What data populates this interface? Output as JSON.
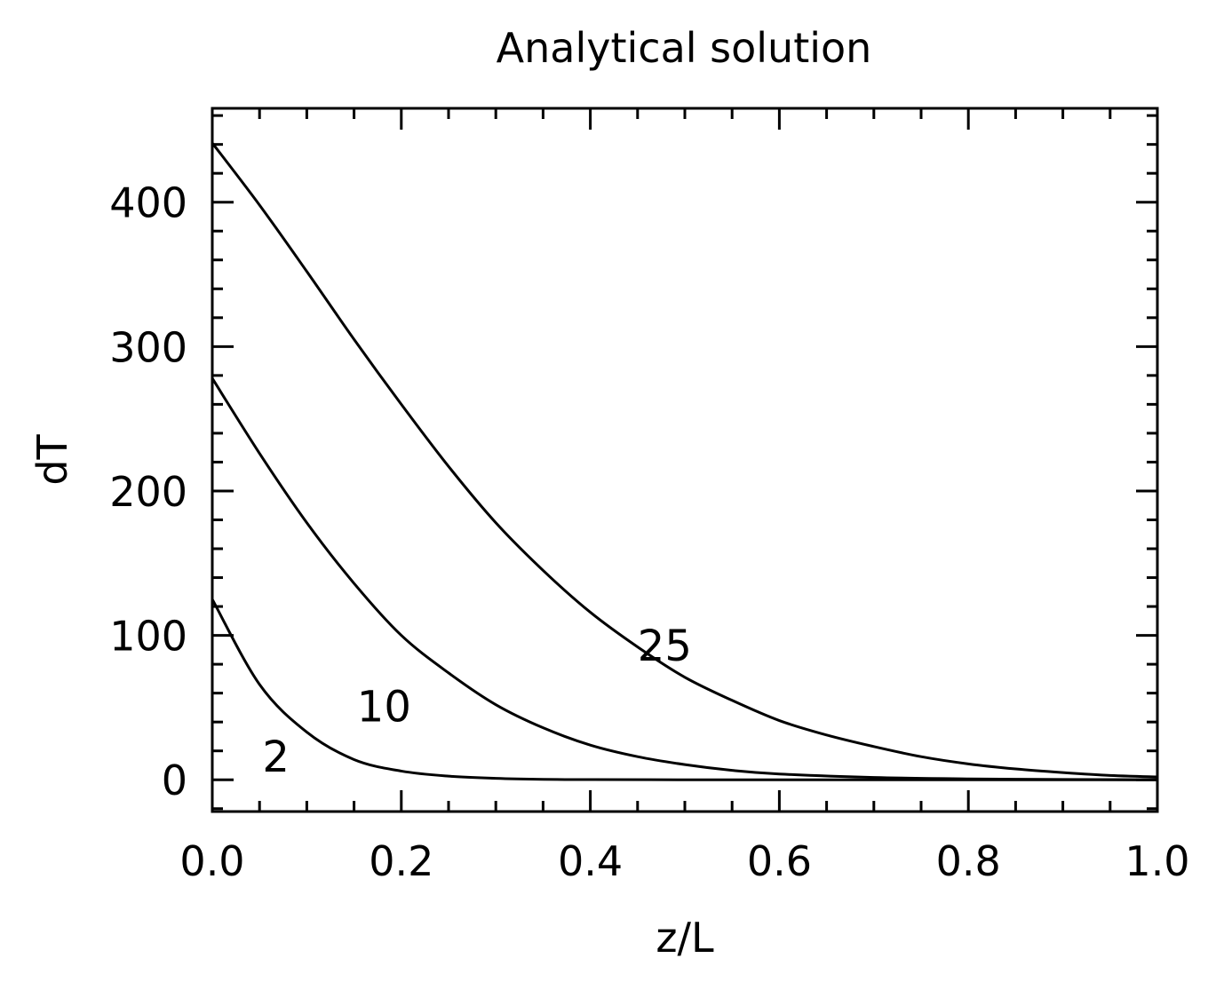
{
  "chart_data": {
    "type": "line",
    "title": "Analytical solution",
    "xlabel": "z/L",
    "ylabel": "dT",
    "xlim": [
      0.0,
      1.0
    ],
    "ylim": [
      -22,
      465
    ],
    "x_ticks": [
      0.0,
      0.2,
      0.4,
      0.6,
      0.8,
      1.0
    ],
    "x_tick_labels": [
      "0.0",
      "0.2",
      "0.4",
      "0.6",
      "0.8",
      "1.0"
    ],
    "y_ticks": [
      0,
      100,
      200,
      300,
      400
    ],
    "y_tick_labels": [
      "0",
      "100",
      "200",
      "300",
      "400"
    ],
    "grid": false,
    "legend": "none",
    "line_color": "#000000",
    "series": [
      {
        "name": "2",
        "x": [
          0.0,
          0.05,
          0.1,
          0.15,
          0.2,
          0.25,
          0.3,
          0.35,
          0.4,
          0.5,
          0.6,
          0.7,
          0.8,
          0.9,
          1.0
        ],
        "values": [
          125,
          66,
          33,
          14,
          6,
          2.5,
          1,
          0.3,
          0.1,
          0,
          0,
          0,
          0,
          0,
          0
        ]
      },
      {
        "name": "10",
        "x": [
          0.0,
          0.05,
          0.1,
          0.15,
          0.2,
          0.25,
          0.3,
          0.35,
          0.4,
          0.45,
          0.5,
          0.55,
          0.6,
          0.7,
          0.8,
          0.9,
          1.0
        ],
        "values": [
          278,
          226,
          178,
          136,
          100,
          74,
          52,
          36,
          24,
          16,
          10.5,
          6.5,
          4,
          1.6,
          0.6,
          0.2,
          0
        ]
      },
      {
        "name": "25",
        "x": [
          0.0,
          0.05,
          0.1,
          0.15,
          0.2,
          0.25,
          0.3,
          0.35,
          0.4,
          0.45,
          0.5,
          0.55,
          0.6,
          0.65,
          0.7,
          0.75,
          0.8,
          0.85,
          0.9,
          0.95,
          1.0
        ],
        "values": [
          441,
          398,
          352,
          305,
          260,
          217,
          178,
          145,
          116,
          92,
          71,
          55,
          41,
          31,
          23,
          16,
          11,
          7.5,
          5,
          3,
          2
        ]
      }
    ],
    "annotations": [
      {
        "text": "2",
        "x": 0.053,
        "y": 16
      },
      {
        "text": "10",
        "x": 0.153,
        "y": 51
      },
      {
        "text": "25",
        "x": 0.45,
        "y": 93
      }
    ]
  }
}
